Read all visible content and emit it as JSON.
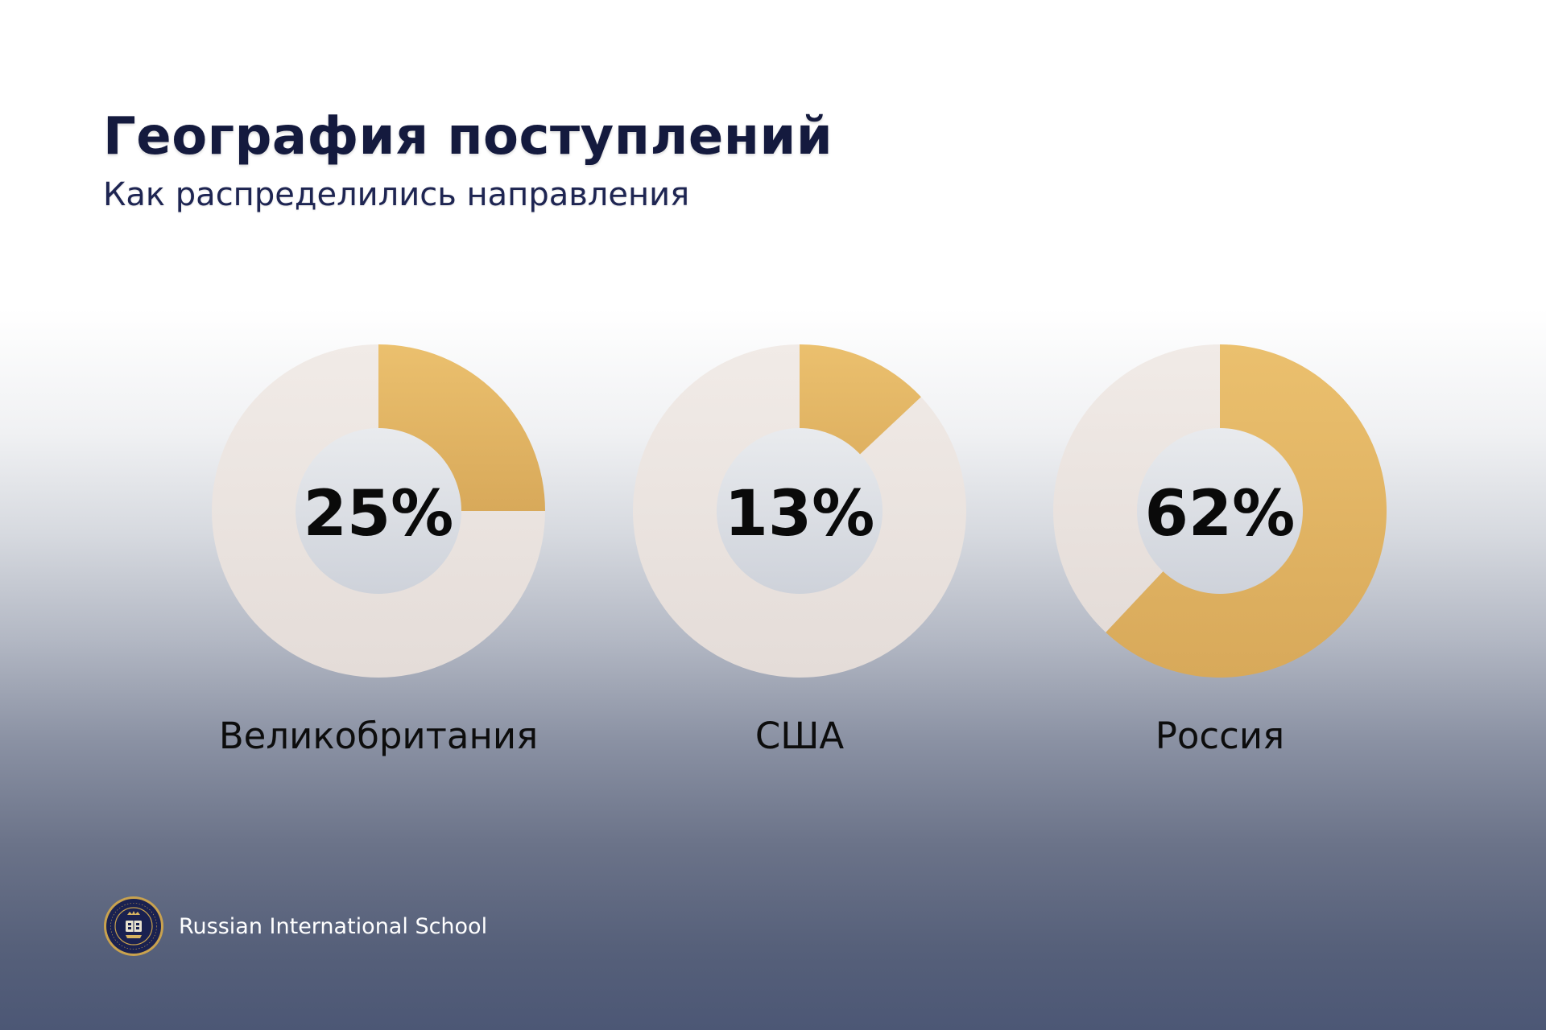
{
  "header": {
    "title": "География поступлений",
    "subtitle": "Как распределились направления"
  },
  "colors": {
    "accent": "#e9bd69",
    "track": "#ede5e0",
    "title": "#141a3e",
    "value_text": "#0a0a0a"
  },
  "chart_data": [
    {
      "type": "pie",
      "categories": [
        "Великобритания"
      ],
      "values": [
        25
      ],
      "value_label": "25%",
      "xlabel": "Великобритания"
    },
    {
      "type": "pie",
      "categories": [
        "США"
      ],
      "values": [
        13
      ],
      "value_label": "13%",
      "xlabel": "США"
    },
    {
      "type": "pie",
      "categories": [
        "Россия"
      ],
      "values": [
        62
      ],
      "value_label": "62%",
      "xlabel": "Россия"
    }
  ],
  "footer": {
    "logo_icon": "school-crest-icon",
    "school_name": "Russian International School"
  }
}
